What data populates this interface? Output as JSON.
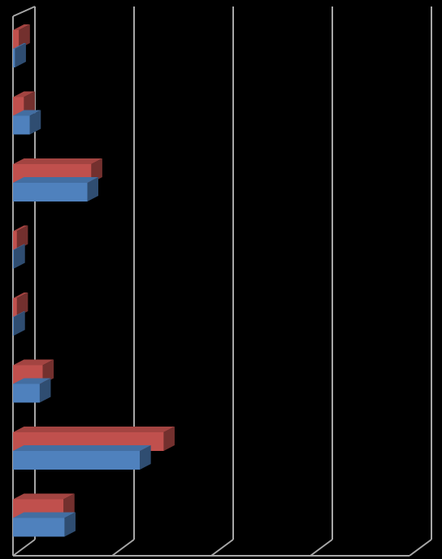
{
  "chart_data": {
    "type": "bar",
    "orientation": "horizontal",
    "three_d": true,
    "title": "",
    "xlabel": "",
    "ylabel": "",
    "xlim": [
      0,
      4
    ],
    "gridlines": [
      0,
      1,
      2,
      3,
      4
    ],
    "grid": true,
    "legend": "none",
    "categories": [
      "",
      "",
      "",
      "",
      "",
      "",
      "",
      ""
    ],
    "series": [
      {
        "color": "#4f81bd",
        "values": [
          0.02,
          0.17,
          0.75,
          0.01,
          0.01,
          0.27,
          1.28,
          0.52
        ]
      },
      {
        "color": "#c0504d",
        "values": [
          0.06,
          0.11,
          0.79,
          0.04,
          0.04,
          0.3,
          1.52,
          0.51
        ]
      }
    ]
  },
  "colors": {
    "background": "#000000",
    "grid": "#a6a6a6"
  }
}
